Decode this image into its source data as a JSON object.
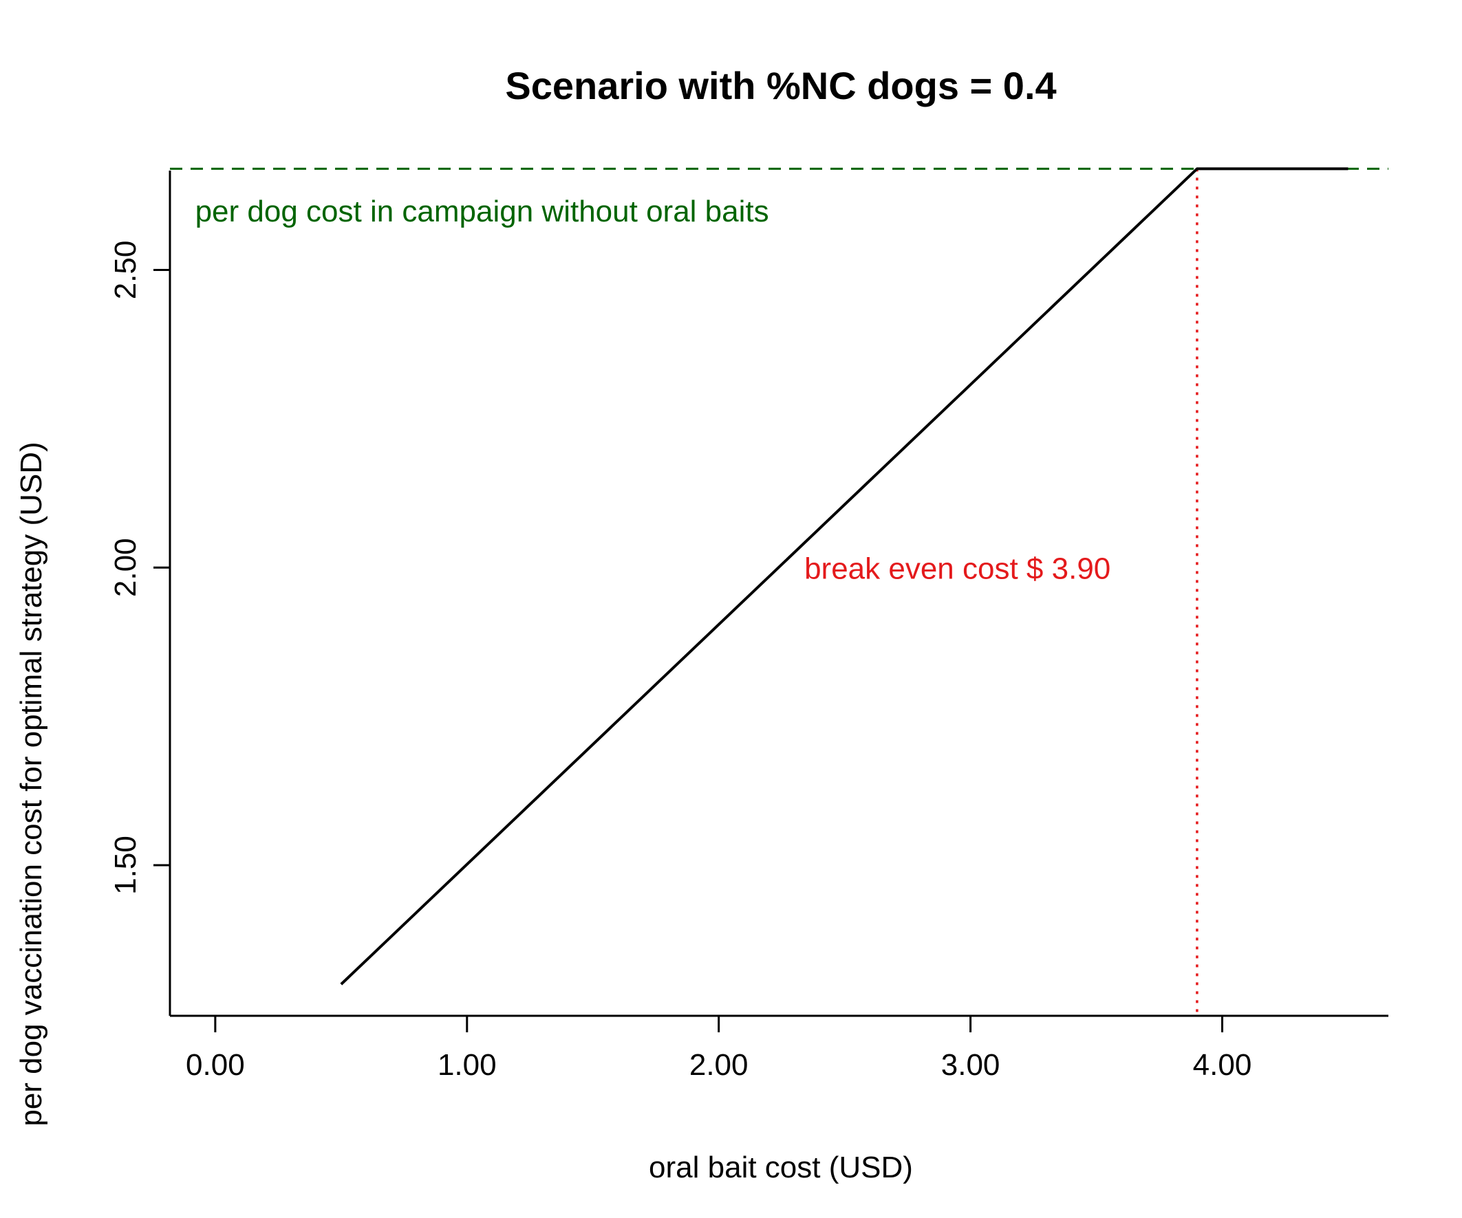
{
  "chart_data": {
    "type": "line",
    "title": "Scenario with %NC dogs = 0.4",
    "xlabel": "oral bait cost (USD)",
    "ylabel": "per dog vaccination cost for optimal strategy (USD)",
    "xlim": [
      -0.18,
      4.66
    ],
    "ylim": [
      1.247,
      2.667
    ],
    "x_ticks": [
      0,
      1,
      2,
      3,
      4
    ],
    "x_tick_labels": [
      "0.00",
      "1.00",
      "2.00",
      "3.00",
      "4.00"
    ],
    "y_ticks": [
      1.5,
      2.0,
      2.5
    ],
    "y_tick_labels": [
      "1.50",
      "2.00",
      "2.50"
    ],
    "grid": false,
    "series": [
      {
        "x": [
          0.5,
          3.9,
          4.5
        ],
        "y": [
          1.3,
          2.67,
          2.67
        ],
        "color": "#000000",
        "style": "solid"
      }
    ],
    "reference_lines": [
      {
        "orientation": "horizontal",
        "value": 2.67,
        "color": "#006400",
        "style": "dashed"
      },
      {
        "orientation": "vertical",
        "value": 3.9,
        "color": "#e41a1c",
        "style": "dotted"
      }
    ],
    "annotations": [
      {
        "text": "per dog cost in campaign without oral baits",
        "x": -0.08,
        "y": 2.6,
        "color": "#006400",
        "anchor": "start"
      },
      {
        "text": "break even cost $ 3.90",
        "x": 2.34,
        "y": 2.0,
        "color": "#e41a1c",
        "anchor": "start"
      }
    ]
  }
}
